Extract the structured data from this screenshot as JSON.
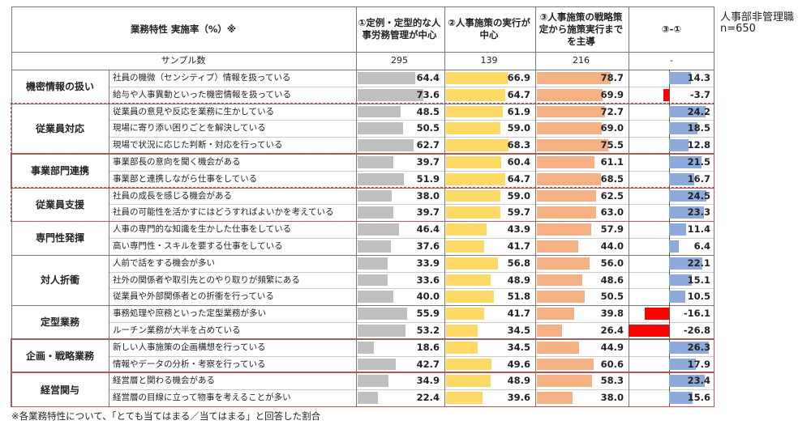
{
  "header": {
    "title": "業務特性 実施率（%）※",
    "col1": "①定例・定型的な人事労務管理が中心",
    "col2": "②人事施策の実行が中心",
    "col3": "③人事施策の戦略策定から施策実行までを主導",
    "col4": "③-①",
    "side_title": "人事部非管理職",
    "side_n": "n=650"
  },
  "sample": {
    "label": "サンプル数",
    "values": [
      "295",
      "139",
      "216",
      "-"
    ]
  },
  "footnote": "※各業務特性について、「とても当てはまる／当てはまる」と回答した割合",
  "colors": {
    "col1": "#bfbfbf",
    "col2": "#ffd966",
    "col3": "#f4b183",
    "pos": "#8eaadb",
    "neg": "#ff0000",
    "box": "#c0504d"
  },
  "chart_data": {
    "type": "bar",
    "x_max": 100,
    "diff_range": [
      -30,
      30
    ],
    "groups": [
      {
        "label": "機密情報の扱い",
        "items": [
          {
            "label": "社員の機微（センシティブ）情報を扱っている",
            "v1": 64.4,
            "v2": 66.9,
            "v3": 78.7,
            "d": 14.3
          },
          {
            "label": "給与や人事異動といった機密情報を扱っている",
            "v1": 73.6,
            "v2": 64.7,
            "v3": 69.9,
            "d": -3.7
          }
        ]
      },
      {
        "label": "従業員対応",
        "items": [
          {
            "label": "従業員の意見や反応を業務に生かしている",
            "v1": 48.5,
            "v2": 61.9,
            "v3": 72.7,
            "d": 24.2
          },
          {
            "label": "現場に寄り添い困りごとを解決している",
            "v1": 50.5,
            "v2": 59.0,
            "v3": 69.0,
            "d": 18.5
          },
          {
            "label": "現場で状況に応じた判断・対応を行っている",
            "v1": 62.7,
            "v2": 68.3,
            "v3": 75.5,
            "d": 12.8
          }
        ]
      },
      {
        "label": "事業部門連携",
        "items": [
          {
            "label": "事業部長の意向を聞く機会がある",
            "v1": 39.7,
            "v2": 60.4,
            "v3": 61.1,
            "d": 21.5
          },
          {
            "label": "事業部と連携しながら仕事をしている",
            "v1": 51.9,
            "v2": 64.7,
            "v3": 68.5,
            "d": 16.7
          }
        ]
      },
      {
        "label": "従業員支援",
        "items": [
          {
            "label": "社員の成長を感じる機会がある",
            "v1": 38.0,
            "v2": 59.0,
            "v3": 62.5,
            "d": 24.5
          },
          {
            "label": "社員の可能性を活かすにはどうすればよいかを考えている",
            "v1": 39.7,
            "v2": 59.7,
            "v3": 63.0,
            "d": 23.3
          }
        ]
      },
      {
        "label": "専門性発揮",
        "items": [
          {
            "label": "人事の専門的な知識を生かした仕事をしている",
            "v1": 46.4,
            "v2": 43.9,
            "v3": 57.9,
            "d": 11.4
          },
          {
            "label": "高い専門性・スキルを要する仕事をしている",
            "v1": 37.6,
            "v2": 41.7,
            "v3": 44.0,
            "d": 6.4
          }
        ]
      },
      {
        "label": "対人折衝",
        "items": [
          {
            "label": "人前で話をする機会が多い",
            "v1": 33.9,
            "v2": 56.8,
            "v3": 56.0,
            "d": 22.1
          },
          {
            "label": "社外の関係者や取引先とのやり取りが頻繁にある",
            "v1": 33.6,
            "v2": 48.9,
            "v3": 48.6,
            "d": 15.1
          },
          {
            "label": "従業員や外部関係者との折衝を行っている",
            "v1": 40.0,
            "v2": 51.8,
            "v3": 50.5,
            "d": 10.5
          }
        ]
      },
      {
        "label": "定型業務",
        "items": [
          {
            "label": "事務処理や庶務といった定型業務が多い",
            "v1": 55.9,
            "v2": 41.7,
            "v3": 39.8,
            "d": -16.1
          },
          {
            "label": "ルーチン業務が大半を占めている",
            "v1": 53.2,
            "v2": 34.5,
            "v3": 26.4,
            "d": -26.8
          }
        ]
      },
      {
        "label": "企画・戦略業務",
        "items": [
          {
            "label": "新しい人事施策の企画構想を行っている",
            "v1": 18.6,
            "v2": 34.5,
            "v3": 44.9,
            "d": 26.3
          },
          {
            "label": "情報やデータの分析・考察を行っている",
            "v1": 42.7,
            "v2": 49.6,
            "v3": 60.6,
            "d": 17.9
          }
        ]
      },
      {
        "label": "経営関与",
        "items": [
          {
            "label": "経営層と関わる機会がある",
            "v1": 34.9,
            "v2": 48.9,
            "v3": 58.3,
            "d": 23.4
          },
          {
            "label": "経営層の目線に立って物事を考えることが多い",
            "v1": 22.4,
            "v2": 39.6,
            "v3": 38.0,
            "d": 15.6
          }
        ]
      }
    ]
  }
}
